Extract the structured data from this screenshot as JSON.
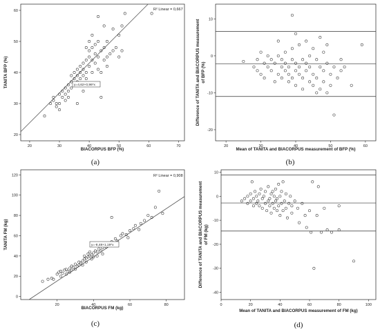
{
  "chart_data": [
    {
      "id": "a",
      "type": "scatter",
      "panel_label": "(a)",
      "xlabel": "BIACORPUS BFP (%)",
      "ylabel": "TANITA BFP (%)",
      "xlim": [
        17,
        72
      ],
      "ylim": [
        18,
        62
      ],
      "xticks": [
        20,
        30,
        40,
        50,
        60,
        70
      ],
      "yticks": [
        20,
        30,
        40,
        50,
        60
      ],
      "r2_label": "R² Linear = 0,667",
      "equation": "y=4,62+0,96*x",
      "regression": {
        "intercept": 4.62,
        "slope": 0.96
      },
      "grid": false,
      "points": [
        [
          25,
          26
        ],
        [
          27,
          30
        ],
        [
          28,
          31
        ],
        [
          28,
          32
        ],
        [
          29,
          30
        ],
        [
          29,
          29
        ],
        [
          30,
          33
        ],
        [
          30,
          28
        ],
        [
          30,
          30
        ],
        [
          31,
          32
        ],
        [
          31,
          34
        ],
        [
          32,
          35
        ],
        [
          32,
          33
        ],
        [
          32,
          31
        ],
        [
          33,
          32
        ],
        [
          33,
          34
        ],
        [
          33,
          36
        ],
        [
          34,
          35
        ],
        [
          34,
          37
        ],
        [
          34,
          39
        ],
        [
          35,
          36
        ],
        [
          35,
          38
        ],
        [
          35,
          40
        ],
        [
          36,
          37
        ],
        [
          36,
          39
        ],
        [
          36,
          41
        ],
        [
          37,
          36
        ],
        [
          37,
          38
        ],
        [
          37,
          40
        ],
        [
          37,
          42
        ],
        [
          38,
          39
        ],
        [
          38,
          41
        ],
        [
          38,
          43
        ],
        [
          39,
          38
        ],
        [
          39,
          40
        ],
        [
          39,
          44
        ],
        [
          39,
          48
        ],
        [
          40,
          42
        ],
        [
          40,
          45
        ],
        [
          40,
          47
        ],
        [
          40,
          50
        ],
        [
          41,
          40
        ],
        [
          41,
          44
        ],
        [
          41,
          48
        ],
        [
          41,
          52
        ],
        [
          42,
          46
        ],
        [
          42,
          49
        ],
        [
          42,
          43
        ],
        [
          43,
          45
        ],
        [
          43,
          50
        ],
        [
          43,
          41
        ],
        [
          43,
          58
        ],
        [
          44,
          47
        ],
        [
          44,
          40
        ],
        [
          44,
          32
        ],
        [
          45,
          44
        ],
        [
          45,
          48
        ],
        [
          45,
          55
        ],
        [
          46,
          45
        ],
        [
          46,
          50
        ],
        [
          46,
          42
        ],
        [
          47,
          46
        ],
        [
          48,
          47
        ],
        [
          48,
          54
        ],
        [
          49,
          48
        ],
        [
          50,
          52
        ],
        [
          50,
          45
        ],
        [
          51,
          47
        ],
        [
          51,
          55
        ],
        [
          52,
          59
        ],
        [
          61,
          59
        ],
        [
          36,
          30
        ],
        [
          38,
          34
        ],
        [
          40,
          36
        ]
      ]
    },
    {
      "id": "b",
      "type": "scatter",
      "panel_label": "(b)",
      "xlabel": "Mean of TANITA and BIACORPUS measurement of BFP (%)",
      "ylabel": "Difference of TANITA and BIACORPUS measurement of BFP (%)",
      "xlim": [
        17,
        63
      ],
      "ylim": [
        -23,
        14
      ],
      "xticks": [
        20,
        30,
        40,
        50,
        60
      ],
      "yticks": [
        -20,
        -10,
        0,
        10
      ],
      "horizontal_lines": [
        6.6,
        -2.2,
        -11
      ],
      "grid": false,
      "points": [
        [
          25,
          -1.5
        ],
        [
          28,
          -3
        ],
        [
          29,
          -4
        ],
        [
          29,
          -1
        ],
        [
          30,
          1
        ],
        [
          30,
          -5
        ],
        [
          31,
          -2
        ],
        [
          31,
          -6
        ],
        [
          32,
          0
        ],
        [
          32,
          -3
        ],
        [
          33,
          -1
        ],
        [
          33,
          -4
        ],
        [
          34,
          -2
        ],
        [
          34,
          -7
        ],
        [
          35,
          -5
        ],
        [
          35,
          0
        ],
        [
          35,
          4
        ],
        [
          36,
          -3
        ],
        [
          36,
          -1
        ],
        [
          36,
          -6
        ],
        [
          37,
          -2
        ],
        [
          37,
          -4
        ],
        [
          37,
          1
        ],
        [
          38,
          -5
        ],
        [
          38,
          -7
        ],
        [
          38,
          -3
        ],
        [
          39,
          -1
        ],
        [
          39,
          -6
        ],
        [
          39,
          2
        ],
        [
          40,
          -4
        ],
        [
          40,
          -2
        ],
        [
          40,
          -8
        ],
        [
          40,
          6
        ],
        [
          41,
          -3
        ],
        [
          41,
          -5
        ],
        [
          41,
          3
        ],
        [
          42,
          -1
        ],
        [
          42,
          -6
        ],
        [
          42,
          -9
        ],
        [
          43,
          -4
        ],
        [
          43,
          -2
        ],
        [
          43,
          4
        ],
        [
          44,
          -7
        ],
        [
          44,
          -3
        ],
        [
          44,
          0
        ],
        [
          45,
          -5
        ],
        [
          45,
          -8
        ],
        [
          45,
          2
        ],
        [
          46,
          -6
        ],
        [
          46,
          -1
        ],
        [
          46,
          -10
        ],
        [
          47,
          -3
        ],
        [
          47,
          -9
        ],
        [
          47,
          5
        ],
        [
          48,
          -4
        ],
        [
          48,
          -7
        ],
        [
          48,
          1
        ],
        [
          49,
          -2
        ],
        [
          49,
          -10
        ],
        [
          49,
          3
        ],
        [
          50,
          -5
        ],
        [
          50,
          -8
        ],
        [
          51,
          -3
        ],
        [
          51,
          -16
        ],
        [
          52,
          -6
        ],
        [
          53,
          -4
        ],
        [
          53,
          -1
        ],
        [
          54,
          -3
        ],
        [
          56,
          -8
        ],
        [
          59,
          3
        ],
        [
          39,
          11
        ]
      ]
    },
    {
      "id": "c",
      "type": "scatter",
      "panel_label": "(c)",
      "xlabel": "BIACORPUS FM (kg)",
      "ylabel": "TANITA FM (kg)",
      "xlim": [
        0,
        90
      ],
      "ylim": [
        -3,
        125
      ],
      "xticks": [
        20,
        40,
        60,
        80
      ],
      "yticks": [
        0,
        20,
        40,
        60,
        80,
        100,
        120
      ],
      "r2_label": "R² Linear = 0,908",
      "equation": "y=-8,48+1,19*x",
      "regression": {
        "intercept": -8.48,
        "slope": 1.19
      },
      "grid": false,
      "points": [
        [
          12,
          15
        ],
        [
          15,
          17
        ],
        [
          17,
          18
        ],
        [
          18,
          17
        ],
        [
          20,
          22
        ],
        [
          21,
          24
        ],
        [
          22,
          20
        ],
        [
          22,
          25
        ],
        [
          23,
          23
        ],
        [
          24,
          26
        ],
        [
          25,
          22
        ],
        [
          25,
          27
        ],
        [
          26,
          25
        ],
        [
          27,
          28
        ],
        [
          27,
          24
        ],
        [
          28,
          30
        ],
        [
          28,
          26
        ],
        [
          29,
          29
        ],
        [
          30,
          32
        ],
        [
          30,
          27
        ],
        [
          31,
          30
        ],
        [
          32,
          31
        ],
        [
          32,
          34
        ],
        [
          33,
          33
        ],
        [
          34,
          35
        ],
        [
          34,
          31
        ],
        [
          35,
          37
        ],
        [
          35,
          40
        ],
        [
          36,
          38
        ],
        [
          36,
          34
        ],
        [
          37,
          39
        ],
        [
          37,
          42
        ],
        [
          38,
          40
        ],
        [
          38,
          44
        ],
        [
          39,
          41
        ],
        [
          39,
          37
        ],
        [
          40,
          43
        ],
        [
          40,
          39
        ],
        [
          41,
          45
        ],
        [
          42,
          44
        ],
        [
          42,
          40
        ],
        [
          43,
          47
        ],
        [
          44,
          45
        ],
        [
          45,
          48
        ],
        [
          45,
          42
        ],
        [
          46,
          50
        ],
        [
          47,
          49
        ],
        [
          48,
          52
        ],
        [
          49,
          51
        ],
        [
          50,
          54
        ],
        [
          50,
          78
        ],
        [
          51,
          53
        ],
        [
          52,
          57
        ],
        [
          53,
          55
        ],
        [
          55,
          60
        ],
        [
          56,
          62
        ],
        [
          58,
          61
        ],
        [
          59,
          58
        ],
        [
          60,
          65
        ],
        [
          62,
          67
        ],
        [
          63,
          70
        ],
        [
          65,
          66
        ],
        [
          66,
          72
        ],
        [
          68,
          75
        ],
        [
          70,
          80
        ],
        [
          72,
          78
        ],
        [
          74,
          88
        ],
        [
          76,
          104
        ],
        [
          78,
          82
        ]
      ]
    },
    {
      "id": "d",
      "type": "scatter",
      "panel_label": "(d)",
      "xlabel": "Mean of TANITA and BIACORPUS measurement of FM (kg)",
      "ylabel": "Difference of TANITA and BIACORPUS measurement of FM (kg)",
      "xlim": [
        0,
        105
      ],
      "ylim": [
        -43,
        11
      ],
      "xticks": [
        0,
        20,
        40,
        60,
        80,
        100
      ],
      "yticks": [
        -40,
        -30,
        -20,
        -10,
        0,
        10
      ],
      "horizontal_lines": [
        8.8,
        -2.8,
        -14.5
      ],
      "grid": false,
      "points": [
        [
          14,
          -2
        ],
        [
          16,
          -1
        ],
        [
          18,
          -3
        ],
        [
          18,
          0
        ],
        [
          20,
          1
        ],
        [
          20,
          -2
        ],
        [
          21,
          6
        ],
        [
          22,
          -1
        ],
        [
          22,
          -4
        ],
        [
          23,
          2
        ],
        [
          24,
          -3
        ],
        [
          24,
          0
        ],
        [
          25,
          -2
        ],
        [
          26,
          1
        ],
        [
          26,
          -4
        ],
        [
          27,
          3
        ],
        [
          28,
          -1
        ],
        [
          28,
          -5
        ],
        [
          29,
          0
        ],
        [
          30,
          -3
        ],
        [
          30,
          2
        ],
        [
          31,
          -6
        ],
        [
          32,
          -2
        ],
        [
          32,
          4
        ],
        [
          33,
          -1
        ],
        [
          33,
          -4
        ],
        [
          34,
          1
        ],
        [
          34,
          -7
        ],
        [
          35,
          -3
        ],
        [
          35,
          2
        ],
        [
          36,
          -5
        ],
        [
          36,
          0
        ],
        [
          37,
          -2
        ],
        [
          37,
          3
        ],
        [
          38,
          -6
        ],
        [
          38,
          -1
        ],
        [
          39,
          5
        ],
        [
          39,
          -4
        ],
        [
          40,
          0
        ],
        [
          40,
          -8
        ],
        [
          41,
          -3
        ],
        [
          41,
          2
        ],
        [
          42,
          -6
        ],
        [
          42,
          6
        ],
        [
          43,
          -2
        ],
        [
          44,
          -5
        ],
        [
          44,
          1
        ],
        [
          45,
          -9
        ],
        [
          46,
          -3
        ],
        [
          47,
          0
        ],
        [
          48,
          -4
        ],
        [
          48,
          -7
        ],
        [
          50,
          -2
        ],
        [
          52,
          -5
        ],
        [
          53,
          -11
        ],
        [
          55,
          -3
        ],
        [
          57,
          -8
        ],
        [
          58,
          -13
        ],
        [
          60,
          -6
        ],
        [
          61,
          -15
        ],
        [
          62,
          6
        ],
        [
          63,
          -30
        ],
        [
          65,
          -8
        ],
        [
          66,
          4
        ],
        [
          68,
          -15
        ],
        [
          70,
          -5
        ],
        [
          72,
          -14
        ],
        [
          75,
          -15
        ],
        [
          80,
          -14
        ],
        [
          80,
          -4
        ],
        [
          90,
          -27
        ]
      ]
    }
  ]
}
